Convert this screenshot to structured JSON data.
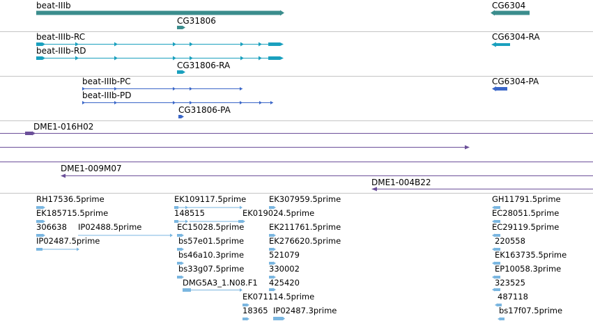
{
  "colors": {
    "gene": "#3b8d8d",
    "mrna": "#1aa0be",
    "protein": "#3a66c8",
    "clone": "#6b4f99",
    "est": "#7ab6e0",
    "separator": "#c4c4c4"
  },
  "icons": {
    "forward": "arrow-right-icon",
    "reverse": "arrow-left-icon"
  },
  "tracks": {
    "gene": {
      "labels": [
        "beat-IIIb",
        "CG31806",
        "CG6304"
      ]
    },
    "mrna": {
      "labels": [
        "beat-IIIb-RC",
        "beat-IIIb-RD",
        "CG31806-RA",
        "CG6304-RA"
      ]
    },
    "protein": {
      "labels": [
        "beat-IIIb-PC",
        "beat-IIIb-PD",
        "CG31806-PA",
        "CG6304-PA"
      ]
    },
    "clones": {
      "labels": [
        "DME1-016H02",
        "DME1-009M07",
        "DME1-004B22"
      ]
    },
    "est": {
      "labels": [
        "RH17536.5prime",
        "EK185715.5prime",
        "306638",
        "IP02488.5prime",
        "IP02487.5prime",
        "EK109117.5prime",
        "148515",
        "EK019024.5prime",
        "EC15028.5prime",
        "bs57e01.5prime",
        "bs46a10.3prime",
        "bs33g07.5prime",
        "DMG5A3_1.N08.F1",
        "EK307959.5prime",
        "EK211761.5prime",
        "EK276620.5prime",
        "521079",
        "330002",
        "425420",
        "EK071114.5prime",
        "18365",
        "IP02487.3prime",
        "GH11791.5prime",
        "EC28051.5prime",
        "EC29119.5prime",
        "220558",
        "EK163735.5prime",
        "EP10058.3prime",
        "323525",
        "487118",
        "bs17f07.5prime"
      ]
    }
  }
}
